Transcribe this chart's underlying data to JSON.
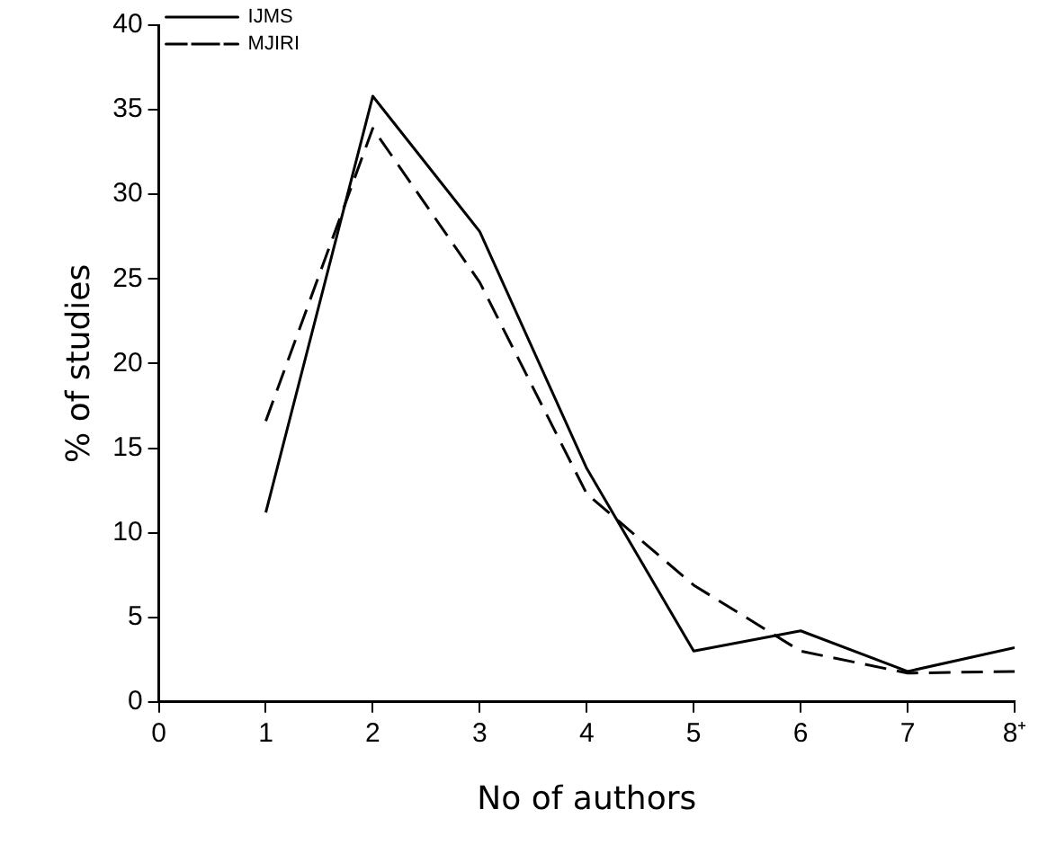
{
  "chart_data": {
    "type": "line",
    "xlabel": "No of authors",
    "ylabel": "% of studies",
    "x": [
      1,
      2,
      3,
      4,
      5,
      6,
      7,
      8
    ],
    "series": [
      {
        "name": "IJMS",
        "color": "#000000",
        "line_style": "solid",
        "values": [
          11.2,
          35.8,
          27.8,
          13.8,
          3.0,
          4.2,
          1.8,
          3.2
        ]
      },
      {
        "name": "MJIRI",
        "color": "#000000",
        "line_style": "dashed",
        "values": [
          16.6,
          33.9,
          24.8,
          12.3,
          6.9,
          3.0,
          1.7,
          1.8
        ]
      }
    ],
    "xlim": [
      0,
      8
    ],
    "xticks": [
      0,
      1,
      2,
      3,
      4,
      5,
      6,
      7,
      {
        "value": 8,
        "label": "8⁺"
      }
    ],
    "ylim": [
      0,
      40
    ],
    "yticks": [
      0,
      5,
      10,
      15,
      20,
      25,
      30,
      35,
      40
    ],
    "grid": false,
    "legend": "top left",
    "marker": "none"
  }
}
